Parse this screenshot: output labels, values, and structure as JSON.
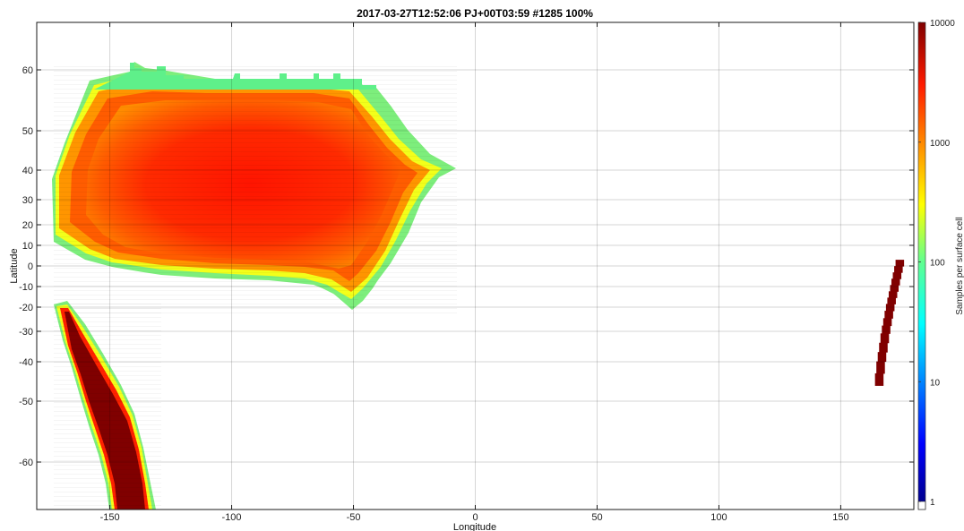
{
  "chart_data": {
    "type": "heatmap",
    "title": "2017-03-27T12:52:06  PJ+00T03:59 #1285 100%",
    "xlabel": "Longitude",
    "ylabel": "Latitude",
    "xlim": [
      -180,
      180
    ],
    "ylim": [
      -70,
      70
    ],
    "xticks": [
      -150,
      -100,
      -50,
      0,
      50,
      100,
      150
    ],
    "yticks": [
      60,
      50,
      40,
      30,
      20,
      10,
      0,
      -10,
      -20,
      -30,
      -40,
      -50,
      -60
    ],
    "y_scale": "nonlinear (latitude spacing compressed near the equator)",
    "grid": true,
    "colorbar": {
      "label": "Samples per surface cell",
      "scale": "log",
      "range": [
        1,
        10000
      ],
      "ticks": [
        1,
        10,
        100,
        1000,
        10000
      ],
      "colormap": "jet"
    },
    "regions": [
      {
        "name": "northern coverage band",
        "lon": [
          -175,
          -7
        ],
        "lat": [
          -21,
          62
        ],
        "peak_samples": 10000,
        "edge_samples": 100
      },
      {
        "name": "southern coverage strip",
        "lon": [
          -172,
          -133
        ],
        "lat": [
          -70,
          -18
        ],
        "peak_samples": 10000,
        "edge_samples": 100
      },
      {
        "name": "eastern coverage strip",
        "lon": [
          163,
          176
        ],
        "lat": [
          -46,
          3
        ],
        "peak_samples": 10000
      }
    ]
  },
  "colors": {
    "dark_red": "#800000",
    "red": "#ff1a00",
    "orange": "#ff8800",
    "yellow": "#ffff00",
    "green": "#60ff90",
    "cyan": "#00ffff",
    "blue": "#0040ff",
    "navy": "#00008f"
  }
}
